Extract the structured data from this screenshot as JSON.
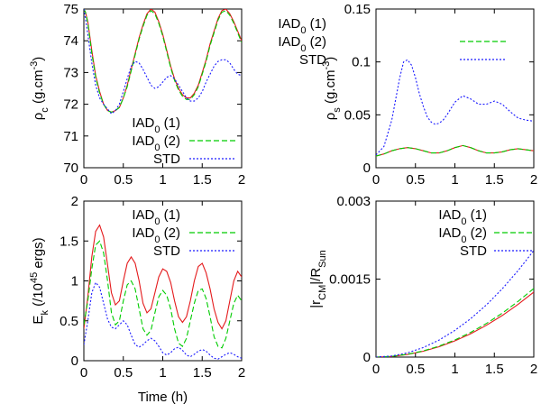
{
  "colors": {
    "iad1": "#e41a1c",
    "iad2": "#00cc00",
    "std": "#1a1aff",
    "axis": "#000000"
  },
  "chart_data": [
    {
      "type": "line",
      "ylabel": "ρc (g.cm-3)",
      "ylabel_parts": {
        "base": "ρ",
        "sub": "c",
        "mid": " (g.cm",
        "sup": "-3",
        "end": ")"
      },
      "xlabel": "",
      "xlim": [
        0,
        2
      ],
      "ylim": [
        70,
        75
      ],
      "xticks": [
        0,
        0.5,
        1,
        1.5,
        2
      ],
      "xtick_labels": [
        "0",
        "0.5",
        "1",
        "1.5",
        "2"
      ],
      "yticks": [
        70,
        71,
        72,
        73,
        74,
        75
      ],
      "ytick_labels": [
        "70",
        "71",
        "72",
        "73",
        "74",
        "75"
      ],
      "legend_position": "bottom-right",
      "series": [
        {
          "name": "IAD0 (1)",
          "name_parts": {
            "base": "IAD",
            "sub": "0",
            "end": " (1)"
          },
          "style": "solid",
          "color_key": "iad1",
          "x": [
            0,
            0.02,
            0.05,
            0.1,
            0.15,
            0.2,
            0.25,
            0.3,
            0.35,
            0.4,
            0.45,
            0.5,
            0.55,
            0.6,
            0.65,
            0.7,
            0.75,
            0.8,
            0.85,
            0.9,
            0.95,
            1.0,
            1.05,
            1.1,
            1.15,
            1.2,
            1.25,
            1.3,
            1.35,
            1.4,
            1.45,
            1.5,
            1.55,
            1.6,
            1.65,
            1.7,
            1.75,
            1.8,
            1.85,
            1.9,
            1.95,
            2.0
          ],
          "y": [
            75,
            74.9,
            74.6,
            73.7,
            72.9,
            72.4,
            72.0,
            71.8,
            71.75,
            71.8,
            71.9,
            72.2,
            72.6,
            73.1,
            73.6,
            74.1,
            74.5,
            74.85,
            75.0,
            74.9,
            74.6,
            74.2,
            73.7,
            73.2,
            72.8,
            72.5,
            72.3,
            72.2,
            72.2,
            72.35,
            72.6,
            73.0,
            73.4,
            73.9,
            74.3,
            74.7,
            74.95,
            75.0,
            74.85,
            74.6,
            74.3,
            74.0
          ]
        },
        {
          "name": "IAD0 (2)",
          "name_parts": {
            "base": "IAD",
            "sub": "0",
            "end": " (2)"
          },
          "style": "dashed",
          "color_key": "iad2",
          "x": [
            0,
            0.02,
            0.05,
            0.1,
            0.15,
            0.2,
            0.25,
            0.3,
            0.35,
            0.4,
            0.45,
            0.5,
            0.55,
            0.6,
            0.65,
            0.7,
            0.75,
            0.8,
            0.85,
            0.9,
            0.95,
            1.0,
            1.05,
            1.1,
            1.15,
            1.2,
            1.25,
            1.3,
            1.35,
            1.4,
            1.45,
            1.5,
            1.55,
            1.6,
            1.65,
            1.7,
            1.75,
            1.8,
            1.85,
            1.9,
            1.95,
            2.0
          ],
          "y": [
            75,
            74.9,
            74.55,
            73.6,
            72.85,
            72.35,
            72.0,
            71.8,
            71.75,
            71.8,
            71.9,
            72.2,
            72.55,
            73.05,
            73.55,
            74.05,
            74.45,
            74.8,
            74.95,
            74.85,
            74.55,
            74.15,
            73.65,
            73.15,
            72.75,
            72.45,
            72.25,
            72.15,
            72.15,
            72.3,
            72.55,
            72.95,
            73.35,
            73.85,
            74.25,
            74.65,
            74.9,
            74.95,
            74.8,
            74.55,
            74.25,
            73.95
          ]
        },
        {
          "name": "STD",
          "name_parts": {
            "base": "STD",
            "sub": "",
            "end": ""
          },
          "style": "dotted",
          "color_key": "std",
          "x": [
            0,
            0.02,
            0.05,
            0.1,
            0.15,
            0.2,
            0.25,
            0.3,
            0.35,
            0.4,
            0.45,
            0.5,
            0.55,
            0.6,
            0.65,
            0.7,
            0.75,
            0.8,
            0.85,
            0.9,
            0.95,
            1.0,
            1.05,
            1.1,
            1.15,
            1.2,
            1.25,
            1.3,
            1.35,
            1.4,
            1.45,
            1.5,
            1.55,
            1.6,
            1.65,
            1.7,
            1.75,
            1.8,
            1.85,
            1.9,
            1.95,
            2.0
          ],
          "y": [
            75,
            74.7,
            74.2,
            73.3,
            72.6,
            72.2,
            72.0,
            71.85,
            71.7,
            71.8,
            72.0,
            72.4,
            72.8,
            73.2,
            73.35,
            73.3,
            73.1,
            72.85,
            72.6,
            72.5,
            72.55,
            72.7,
            72.85,
            72.9,
            72.8,
            72.6,
            72.4,
            72.2,
            72.1,
            72.1,
            72.2,
            72.4,
            72.7,
            72.95,
            73.2,
            73.35,
            73.4,
            73.4,
            73.3,
            73.1,
            72.95,
            72.9
          ]
        }
      ]
    },
    {
      "type": "line",
      "ylabel": "ρs (g.cm-3)",
      "ylabel_parts": {
        "base": "ρ",
        "sub": "s",
        "mid": " (g.cm",
        "sup": "-3",
        "end": ")"
      },
      "xlabel": "",
      "xlim": [
        0,
        2
      ],
      "ylim": [
        0,
        0.15
      ],
      "xticks": [
        0,
        0.5,
        1,
        1.5,
        2
      ],
      "xtick_labels": [
        "0",
        "0.5",
        "1",
        "1.5",
        "2"
      ],
      "yticks": [
        0,
        0.05,
        0.1,
        0.15
      ],
      "ytick_labels": [
        "0",
        "0.05",
        "0.1",
        "0.15"
      ],
      "legend_position": "top-right",
      "series": [
        {
          "name": "IAD0 (1)",
          "name_parts": {
            "base": "IAD",
            "sub": "0",
            "end": " (1)"
          },
          "style": "solid",
          "color_key": "iad1",
          "x": [
            0,
            0.1,
            0.2,
            0.3,
            0.4,
            0.5,
            0.6,
            0.7,
            0.8,
            0.9,
            1.0,
            1.1,
            1.2,
            1.3,
            1.4,
            1.5,
            1.6,
            1.7,
            1.8,
            1.9,
            2.0
          ],
          "y": [
            0.011,
            0.013,
            0.016,
            0.018,
            0.019,
            0.018,
            0.016,
            0.014,
            0.014,
            0.016,
            0.019,
            0.021,
            0.019,
            0.016,
            0.014,
            0.014,
            0.015,
            0.017,
            0.018,
            0.017,
            0.016
          ]
        },
        {
          "name": "IAD0 (2)",
          "name_parts": {
            "base": "IAD",
            "sub": "0",
            "end": " (2)"
          },
          "style": "dashed",
          "color_key": "iad2",
          "x": [
            0,
            0.1,
            0.2,
            0.3,
            0.4,
            0.5,
            0.6,
            0.7,
            0.8,
            0.9,
            1.0,
            1.1,
            1.2,
            1.3,
            1.4,
            1.5,
            1.6,
            1.7,
            1.8,
            1.9,
            2.0
          ],
          "y": [
            0.011,
            0.013,
            0.016,
            0.018,
            0.019,
            0.018,
            0.016,
            0.014,
            0.014,
            0.016,
            0.019,
            0.021,
            0.019,
            0.016,
            0.014,
            0.014,
            0.015,
            0.017,
            0.018,
            0.017,
            0.016
          ]
        },
        {
          "name": "STD",
          "name_parts": {
            "base": "STD",
            "sub": "",
            "end": ""
          },
          "style": "dotted",
          "color_key": "std",
          "x": [
            0,
            0.1,
            0.2,
            0.3,
            0.35,
            0.4,
            0.45,
            0.5,
            0.55,
            0.6,
            0.65,
            0.7,
            0.75,
            0.8,
            0.85,
            0.9,
            1.0,
            1.1,
            1.2,
            1.3,
            1.4,
            1.5,
            1.6,
            1.7,
            1.8,
            1.9,
            2.0
          ],
          "y": [
            0.012,
            0.02,
            0.045,
            0.085,
            0.1,
            0.102,
            0.097,
            0.085,
            0.07,
            0.058,
            0.048,
            0.043,
            0.041,
            0.042,
            0.045,
            0.05,
            0.062,
            0.068,
            0.065,
            0.06,
            0.06,
            0.063,
            0.06,
            0.053,
            0.047,
            0.045,
            0.044
          ]
        }
      ]
    },
    {
      "type": "line",
      "ylabel": "Ek (/10^45 ergs)",
      "ylabel_parts": {
        "base": "E",
        "sub": "k",
        "mid": " (/10",
        "sup": "45",
        "end": " ergs)"
      },
      "xlabel": "Time (h)",
      "xlim": [
        0,
        2
      ],
      "ylim": [
        0,
        2
      ],
      "xticks": [
        0,
        0.5,
        1,
        1.5,
        2
      ],
      "xtick_labels": [
        "0",
        "0.5",
        "1",
        "1.5",
        "2"
      ],
      "yticks": [
        0,
        0.5,
        1,
        1.5,
        2
      ],
      "ytick_labels": [
        "0",
        "0.5",
        "1",
        "1.5",
        "2"
      ],
      "legend_position": "top-right",
      "series": [
        {
          "name": "IAD0 (1)",
          "name_parts": {
            "base": "IAD",
            "sub": "0",
            "end": " (1)"
          },
          "style": "solid",
          "color_key": "iad1",
          "x": [
            0,
            0.05,
            0.1,
            0.15,
            0.2,
            0.25,
            0.3,
            0.35,
            0.4,
            0.45,
            0.5,
            0.55,
            0.6,
            0.65,
            0.7,
            0.75,
            0.8,
            0.85,
            0.9,
            0.95,
            1.0,
            1.05,
            1.1,
            1.15,
            1.2,
            1.25,
            1.3,
            1.35,
            1.4,
            1.45,
            1.5,
            1.55,
            1.6,
            1.65,
            1.7,
            1.75,
            1.8,
            1.85,
            1.9,
            1.95,
            2.0
          ],
          "y": [
            0.4,
            0.8,
            1.3,
            1.62,
            1.7,
            1.55,
            1.2,
            0.85,
            0.7,
            0.75,
            1.0,
            1.22,
            1.3,
            1.22,
            1.0,
            0.72,
            0.6,
            0.65,
            0.85,
            1.05,
            1.15,
            1.12,
            0.98,
            0.75,
            0.55,
            0.48,
            0.55,
            0.75,
            1.0,
            1.18,
            1.22,
            1.1,
            0.9,
            0.65,
            0.48,
            0.4,
            0.5,
            0.75,
            1.0,
            1.12,
            1.05
          ]
        },
        {
          "name": "IAD0 (2)",
          "name_parts": {
            "base": "IAD",
            "sub": "0",
            "end": " (2)"
          },
          "style": "dashed",
          "color_key": "iad2",
          "x": [
            0,
            0.05,
            0.1,
            0.15,
            0.2,
            0.25,
            0.3,
            0.35,
            0.4,
            0.45,
            0.5,
            0.55,
            0.6,
            0.65,
            0.7,
            0.75,
            0.8,
            0.85,
            0.9,
            0.95,
            1.0,
            1.05,
            1.1,
            1.15,
            1.2,
            1.25,
            1.3,
            1.35,
            1.4,
            1.45,
            1.5,
            1.55,
            1.6,
            1.65,
            1.7,
            1.75,
            1.8,
            1.85,
            1.9,
            1.95,
            2.0
          ],
          "y": [
            0.45,
            0.75,
            1.15,
            1.45,
            1.5,
            1.35,
            1.0,
            0.6,
            0.45,
            0.5,
            0.75,
            0.95,
            1.0,
            0.9,
            0.65,
            0.4,
            0.32,
            0.38,
            0.6,
            0.8,
            0.88,
            0.82,
            0.65,
            0.4,
            0.22,
            0.18,
            0.28,
            0.5,
            0.72,
            0.88,
            0.9,
            0.78,
            0.55,
            0.3,
            0.18,
            0.16,
            0.28,
            0.5,
            0.72,
            0.82,
            0.75
          ]
        },
        {
          "name": "STD",
          "name_parts": {
            "base": "STD",
            "sub": "",
            "end": ""
          },
          "style": "dotted",
          "color_key": "std",
          "x": [
            0,
            0.05,
            0.1,
            0.15,
            0.2,
            0.25,
            0.3,
            0.35,
            0.4,
            0.45,
            0.5,
            0.55,
            0.6,
            0.65,
            0.7,
            0.75,
            0.8,
            0.85,
            0.9,
            0.95,
            1.0,
            1.05,
            1.1,
            1.15,
            1.2,
            1.25,
            1.3,
            1.35,
            1.4,
            1.45,
            1.5,
            1.55,
            1.6,
            1.65,
            1.7,
            1.75,
            1.8,
            1.85,
            1.9,
            1.95,
            2.0
          ],
          "y": [
            0.2,
            0.5,
            0.85,
            0.98,
            0.92,
            0.72,
            0.52,
            0.42,
            0.4,
            0.45,
            0.5,
            0.45,
            0.32,
            0.2,
            0.17,
            0.2,
            0.25,
            0.28,
            0.25,
            0.18,
            0.1,
            0.07,
            0.1,
            0.15,
            0.17,
            0.13,
            0.07,
            0.05,
            0.08,
            0.12,
            0.14,
            0.12,
            0.07,
            0.03,
            0.02,
            0.05,
            0.08,
            0.1,
            0.08,
            0.05,
            0.03
          ]
        }
      ]
    },
    {
      "type": "line",
      "ylabel": "|rCM|/RSun",
      "ylabel_parts": {
        "base": "|r",
        "sub": "CM",
        "mid": "|/R",
        "sub2": "Sun"
      },
      "xlabel": "",
      "xlim": [
        0,
        2
      ],
      "ylim": [
        0,
        0.003
      ],
      "xticks": [
        0,
        0.5,
        1,
        1.5,
        2
      ],
      "xtick_labels": [
        "0",
        "0.5",
        "1",
        "1.5",
        "2"
      ],
      "yticks": [
        0,
        0.0015,
        0.003
      ],
      "ytick_labels": [
        "0",
        "0.0015",
        "0.003"
      ],
      "legend_position": "top-right",
      "series": [
        {
          "name": "IAD0 (1)",
          "name_parts": {
            "base": "IAD",
            "sub": "0",
            "end": " (1)"
          },
          "style": "solid",
          "color_key": "iad1",
          "x": [
            0,
            0.2,
            0.4,
            0.6,
            0.8,
            1.0,
            1.2,
            1.4,
            1.6,
            1.8,
            2.0
          ],
          "y": [
            0,
            1.25e-05,
            5e-05,
            0.0001125,
            0.0002,
            0.0003125,
            0.00045,
            0.0006125,
            0.0008,
            0.0010125,
            0.00125
          ]
        },
        {
          "name": "IAD0 (2)",
          "name_parts": {
            "base": "IAD",
            "sub": "0",
            "end": " (2)"
          },
          "style": "dashed",
          "color_key": "iad2",
          "x": [
            0,
            0.2,
            0.4,
            0.6,
            0.8,
            1.0,
            1.2,
            1.4,
            1.6,
            1.8,
            2.0
          ],
          "y": [
            0,
            1.32e-05,
            5.3e-05,
            0.000119,
            0.000211,
            0.00033,
            0.000475,
            0.000647,
            0.000845,
            0.00107,
            0.00132
          ]
        },
        {
          "name": "STD",
          "name_parts": {
            "base": "STD",
            "sub": "",
            "end": ""
          },
          "style": "dotted",
          "color_key": "std",
          "x": [
            0,
            0.2,
            0.4,
            0.6,
            0.8,
            1.0,
            1.2,
            1.4,
            1.6,
            1.8,
            2.0
          ],
          "y": [
            0,
            2.05e-05,
            8.2e-05,
            0.0001845,
            0.000328,
            0.0005125,
            0.000738,
            0.0010045,
            0.001312,
            0.0016605,
            0.00205
          ]
        }
      ]
    }
  ]
}
